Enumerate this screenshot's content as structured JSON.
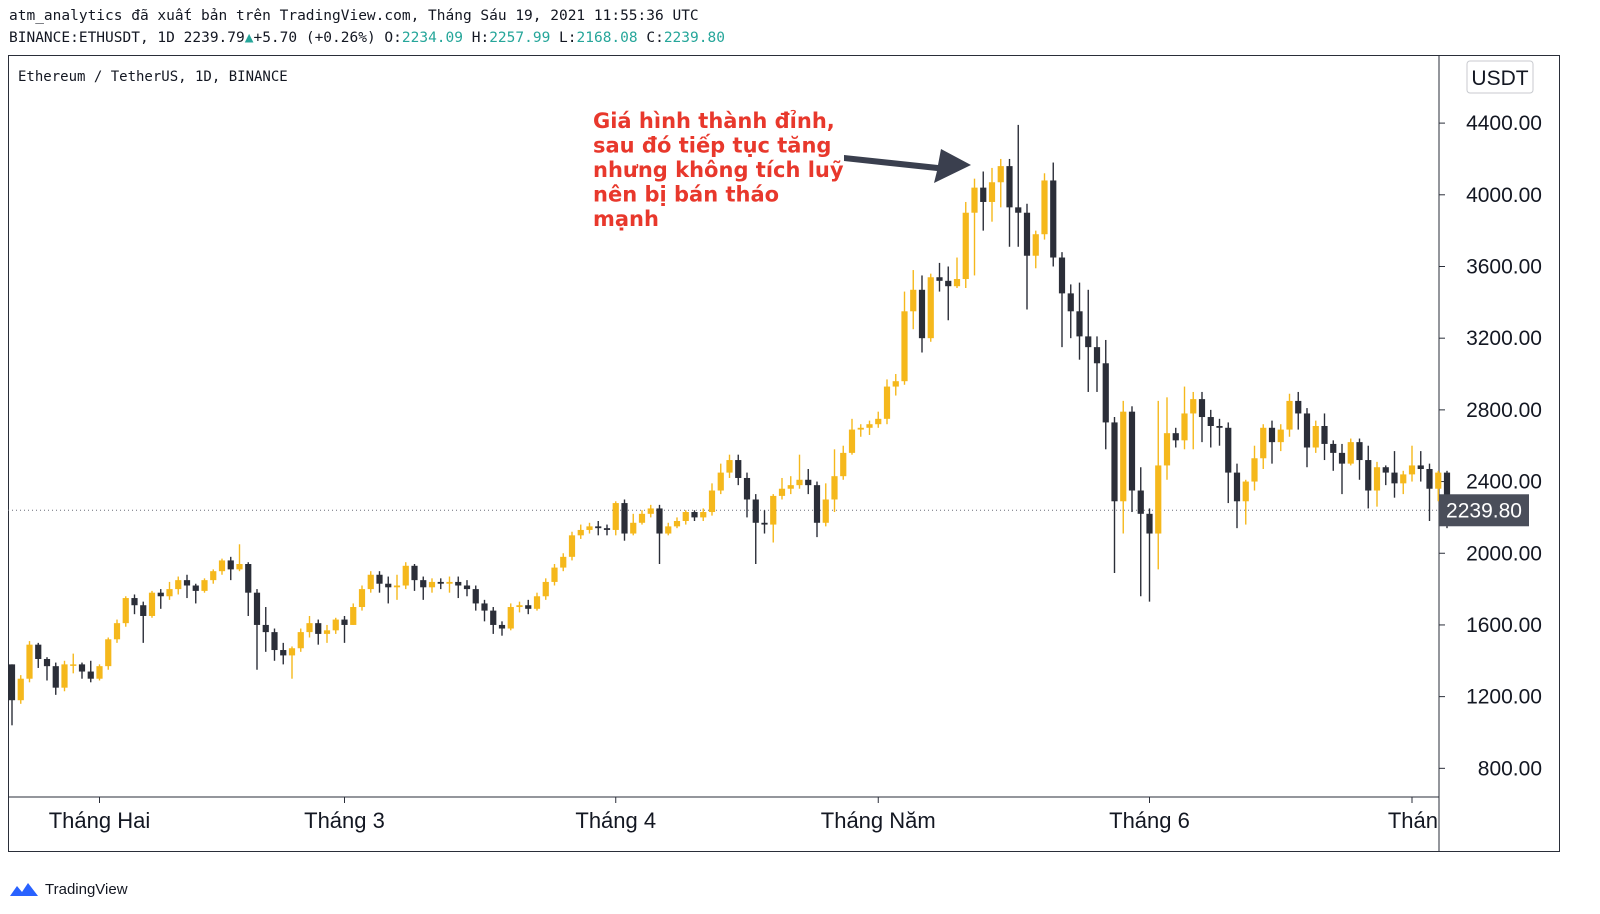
{
  "header": {
    "publisher_line": "atm_analytics đã xuất bản trên TradingView.com, Tháng Sáu 19, 2021 11:55:36 UTC",
    "symbol": "BINANCE:ETHUSDT,",
    "interval": "1D",
    "last": "2239.79",
    "change": "+5.70 (+0.26%)",
    "open_label": "O:",
    "open": "2234.09",
    "high_label": "H:",
    "high": "2257.99",
    "low_label": "L:",
    "low": "2168.08",
    "close_label": "C:",
    "close": "2239.80"
  },
  "legend": {
    "title": "Ethereum / TetherUS, 1D, BINANCE"
  },
  "currency_button": "USDT",
  "price_tag": "2239.80",
  "footer": {
    "brand": "TradingView",
    "logo_icon": "tradingview-logo-icon"
  },
  "colors": {
    "up": "#f5b81c",
    "down": "#2b2e38",
    "annotation": "#e8382c",
    "price_tag_bg": "#4a4e5a"
  },
  "annotation": {
    "lines": [
      "Giá hình thành đỉnh,",
      "sau đó tiếp tục tăng",
      "nhưng không tích luỹ",
      "nên bị bán tháo",
      "mạnh"
    ]
  },
  "chart_data": {
    "type": "candlestick",
    "yticks": [
      4400,
      4000,
      3600,
      3200,
      2800,
      2400,
      2000,
      1600,
      1200,
      800
    ],
    "ytick_labels": [
      "4400.00",
      "4000.00",
      "3600.00",
      "3200.00",
      "2800.00",
      "2400.00",
      "2000.00",
      "1600.00",
      "1200.00",
      "800.00"
    ],
    "ylim": [
      640,
      4780
    ],
    "xticks": [
      {
        "label": "Tháng Hai",
        "index": 10
      },
      {
        "label": "Tháng 3",
        "index": 38
      },
      {
        "label": "Tháng 4",
        "index": 69
      },
      {
        "label": "Tháng Năm",
        "index": 99
      },
      {
        "label": "Tháng 6",
        "index": 130
      },
      {
        "label": "Thán",
        "index": 160
      }
    ],
    "last_price": 2239.8,
    "candles": [
      [
        1380,
        1180,
        1040,
        1380
      ],
      [
        1180,
        1300,
        1160,
        1320
      ],
      [
        1300,
        1490,
        1280,
        1510
      ],
      [
        1490,
        1410,
        1360,
        1500
      ],
      [
        1410,
        1370,
        1290,
        1420
      ],
      [
        1370,
        1250,
        1210,
        1390
      ],
      [
        1250,
        1380,
        1230,
        1400
      ],
      [
        1380,
        1380,
        1330,
        1440
      ],
      [
        1380,
        1340,
        1300,
        1390
      ],
      [
        1340,
        1300,
        1280,
        1400
      ],
      [
        1300,
        1370,
        1290,
        1380
      ],
      [
        1370,
        1520,
        1350,
        1530
      ],
      [
        1520,
        1610,
        1500,
        1630
      ],
      [
        1610,
        1750,
        1590,
        1760
      ],
      [
        1750,
        1710,
        1660,
        1770
      ],
      [
        1710,
        1650,
        1500,
        1730
      ],
      [
        1650,
        1780,
        1640,
        1790
      ],
      [
        1780,
        1760,
        1690,
        1800
      ],
      [
        1760,
        1800,
        1740,
        1840
      ],
      [
        1800,
        1850,
        1770,
        1870
      ],
      [
        1850,
        1820,
        1750,
        1880
      ],
      [
        1820,
        1790,
        1720,
        1830
      ],
      [
        1790,
        1850,
        1780,
        1860
      ],
      [
        1850,
        1900,
        1830,
        1910
      ],
      [
        1900,
        1960,
        1880,
        1970
      ],
      [
        1960,
        1910,
        1850,
        1980
      ],
      [
        1910,
        1940,
        1900,
        2050
      ],
      [
        1940,
        1780,
        1650,
        1950
      ],
      [
        1780,
        1600,
        1350,
        1800
      ],
      [
        1600,
        1560,
        1450,
        1700
      ],
      [
        1560,
        1460,
        1400,
        1580
      ],
      [
        1460,
        1430,
        1380,
        1500
      ],
      [
        1430,
        1470,
        1300,
        1480
      ],
      [
        1470,
        1560,
        1450,
        1580
      ],
      [
        1560,
        1610,
        1530,
        1650
      ],
      [
        1610,
        1550,
        1490,
        1630
      ],
      [
        1550,
        1570,
        1500,
        1600
      ],
      [
        1570,
        1630,
        1550,
        1640
      ],
      [
        1630,
        1600,
        1500,
        1650
      ],
      [
        1600,
        1700,
        1600,
        1720
      ],
      [
        1700,
        1800,
        1680,
        1820
      ],
      [
        1800,
        1880,
        1780,
        1900
      ],
      [
        1880,
        1830,
        1780,
        1900
      ],
      [
        1830,
        1810,
        1720,
        1870
      ],
      [
        1810,
        1820,
        1740,
        1880
      ],
      [
        1820,
        1930,
        1800,
        1950
      ],
      [
        1930,
        1850,
        1790,
        1940
      ],
      [
        1850,
        1810,
        1740,
        1870
      ],
      [
        1810,
        1840,
        1780,
        1860
      ],
      [
        1840,
        1830,
        1800,
        1860
      ],
      [
        1830,
        1840,
        1780,
        1870
      ],
      [
        1840,
        1820,
        1750,
        1870
      ],
      [
        1820,
        1800,
        1760,
        1850
      ],
      [
        1800,
        1720,
        1680,
        1820
      ],
      [
        1720,
        1680,
        1620,
        1740
      ],
      [
        1680,
        1600,
        1550,
        1700
      ],
      [
        1600,
        1580,
        1540,
        1620
      ],
      [
        1580,
        1700,
        1570,
        1720
      ],
      [
        1700,
        1710,
        1670,
        1730
      ],
      [
        1710,
        1690,
        1660,
        1740
      ],
      [
        1690,
        1760,
        1680,
        1780
      ],
      [
        1760,
        1840,
        1740,
        1860
      ],
      [
        1840,
        1920,
        1820,
        1940
      ],
      [
        1920,
        1980,
        1900,
        2000
      ],
      [
        1980,
        2100,
        1960,
        2120
      ],
      [
        2100,
        2130,
        2080,
        2160
      ],
      [
        2130,
        2150,
        2110,
        2170
      ],
      [
        2150,
        2140,
        2100,
        2180
      ],
      [
        2140,
        2130,
        2100,
        2160
      ],
      [
        2130,
        2280,
        2100,
        2290
      ],
      [
        2280,
        2110,
        2070,
        2300
      ],
      [
        2110,
        2170,
        2100,
        2220
      ],
      [
        2170,
        2220,
        2160,
        2240
      ],
      [
        2220,
        2250,
        2200,
        2270
      ],
      [
        2250,
        2110,
        1940,
        2270
      ],
      [
        2110,
        2150,
        2100,
        2170
      ],
      [
        2150,
        2180,
        2140,
        2200
      ],
      [
        2180,
        2230,
        2160,
        2240
      ],
      [
        2230,
        2200,
        2180,
        2240
      ],
      [
        2200,
        2230,
        2180,
        2250
      ],
      [
        2230,
        2350,
        2210,
        2390
      ],
      [
        2350,
        2450,
        2330,
        2500
      ],
      [
        2450,
        2520,
        2420,
        2550
      ],
      [
        2520,
        2420,
        2380,
        2550
      ],
      [
        2420,
        2300,
        2200,
        2450
      ],
      [
        2300,
        2170,
        1940,
        2330
      ],
      [
        2170,
        2160,
        2110,
        2240
      ],
      [
        2160,
        2320,
        2060,
        2330
      ],
      [
        2320,
        2360,
        2300,
        2420
      ],
      [
        2360,
        2380,
        2330,
        2430
      ],
      [
        2380,
        2410,
        2360,
        2550
      ],
      [
        2410,
        2380,
        2330,
        2470
      ],
      [
        2380,
        2170,
        2090,
        2400
      ],
      [
        2170,
        2300,
        2150,
        2390
      ],
      [
        2300,
        2430,
        2230,
        2580
      ],
      [
        2430,
        2560,
        2410,
        2600
      ],
      [
        2560,
        2690,
        2550,
        2750
      ],
      [
        2690,
        2700,
        2650,
        2720
      ],
      [
        2700,
        2720,
        2660,
        2740
      ],
      [
        2720,
        2750,
        2700,
        2790
      ],
      [
        2750,
        2930,
        2720,
        2970
      ],
      [
        2930,
        2960,
        2880,
        3000
      ],
      [
        2960,
        3350,
        2940,
        3460
      ],
      [
        3350,
        3470,
        3250,
        3580
      ],
      [
        3470,
        3200,
        3120,
        3550
      ],
      [
        3200,
        3540,
        3180,
        3560
      ],
      [
        3540,
        3520,
        3460,
        3620
      ],
      [
        3520,
        3490,
        3300,
        3600
      ],
      [
        3490,
        3530,
        3480,
        3650
      ],
      [
        3530,
        3900,
        3480,
        3960
      ],
      [
        3900,
        4040,
        3550,
        4090
      ],
      [
        4040,
        3960,
        3800,
        4130
      ],
      [
        3960,
        4070,
        3850,
        4150
      ],
      [
        4070,
        4160,
        3930,
        4200
      ],
      [
        4160,
        3930,
        3710,
        4200
      ],
      [
        3930,
        3900,
        3710,
        4390
      ],
      [
        3900,
        3660,
        3360,
        3950
      ],
      [
        3660,
        3780,
        3590,
        3800
      ],
      [
        3780,
        4080,
        3750,
        4120
      ],
      [
        4080,
        3650,
        3600,
        4180
      ],
      [
        3650,
        3450,
        3150,
        3680
      ],
      [
        3450,
        3350,
        3200,
        3500
      ],
      [
        3350,
        3210,
        3080,
        3510
      ],
      [
        3210,
        3150,
        2900,
        3470
      ],
      [
        3150,
        3060,
        2900,
        3210
      ],
      [
        3060,
        2730,
        2580,
        3190
      ],
      [
        2730,
        2290,
        1890,
        2760
      ],
      [
        2290,
        2790,
        2110,
        2850
      ],
      [
        2790,
        2350,
        2230,
        2820
      ],
      [
        2350,
        2220,
        1760,
        2480
      ],
      [
        2220,
        2110,
        1730,
        2250
      ],
      [
        2110,
        2490,
        1910,
        2850
      ],
      [
        2490,
        2670,
        2410,
        2870
      ],
      [
        2670,
        2630,
        2590,
        2700
      ],
      [
        2630,
        2780,
        2580,
        2930
      ],
      [
        2780,
        2860,
        2580,
        2900
      ],
      [
        2860,
        2760,
        2620,
        2900
      ],
      [
        2760,
        2710,
        2590,
        2800
      ],
      [
        2710,
        2700,
        2600,
        2750
      ],
      [
        2700,
        2450,
        2280,
        2730
      ],
      [
        2450,
        2290,
        2140,
        2500
      ],
      [
        2290,
        2400,
        2160,
        2410
      ],
      [
        2400,
        2530,
        2350,
        2600
      ],
      [
        2530,
        2700,
        2470,
        2720
      ],
      [
        2700,
        2620,
        2500,
        2740
      ],
      [
        2620,
        2690,
        2570,
        2720
      ],
      [
        2690,
        2850,
        2650,
        2890
      ],
      [
        2850,
        2780,
        2690,
        2900
      ],
      [
        2780,
        2590,
        2480,
        2810
      ],
      [
        2590,
        2710,
        2560,
        2740
      ],
      [
        2710,
        2610,
        2520,
        2780
      ],
      [
        2610,
        2560,
        2460,
        2630
      ],
      [
        2560,
        2500,
        2330,
        2610
      ],
      [
        2500,
        2620,
        2490,
        2640
      ],
      [
        2620,
        2520,
        2410,
        2640
      ],
      [
        2520,
        2350,
        2250,
        2600
      ],
      [
        2350,
        2480,
        2260,
        2510
      ],
      [
        2480,
        2450,
        2380,
        2490
      ],
      [
        2450,
        2390,
        2310,
        2570
      ],
      [
        2390,
        2440,
        2330,
        2460
      ],
      [
        2440,
        2490,
        2400,
        2600
      ],
      [
        2490,
        2470,
        2400,
        2570
      ],
      [
        2470,
        2360,
        2180,
        2500
      ],
      [
        2360,
        2450,
        2290,
        2460
      ],
      [
        2450,
        2240,
        2140,
        2460
      ],
      [
        2234.09,
        2239.8,
        2168.08,
        2257.99
      ]
    ]
  }
}
